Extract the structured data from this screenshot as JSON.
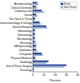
{
  "chart_data": {
    "type": "bar",
    "orientation": "horizontal",
    "categories": [
      "Anesthesiology",
      "Clinical Chemistry",
      "Cardiovascular",
      "Dental",
      "Ear, Nose & Throat",
      "Gastroenterology & Urology",
      "General Hospital",
      "Hematology",
      "Immunology",
      "Microbiology",
      "Neurology",
      "OB/Gynecology",
      "Ophthalmic",
      "Orthopedic",
      "Physical Medicine",
      "Radiology",
      "Gen & Plastic Surgery",
      "Toxicology"
    ],
    "series": [
      {
        "name": "Rural",
        "color": "#1a3a8a",
        "values": [
          4,
          3,
          8,
          3,
          2,
          6,
          12,
          2,
          2,
          2,
          2,
          3,
          3,
          8,
          2,
          14,
          30,
          1
        ]
      },
      {
        "name": "Non Rural",
        "color": "#8fa8d0",
        "values": [
          5,
          4,
          10,
          4,
          2,
          7,
          13,
          2,
          2,
          2,
          3,
          3,
          4,
          9,
          3,
          12,
          28,
          1
        ]
      }
    ],
    "xlabel": "Percent",
    "xlim": [
      0,
      40
    ],
    "xticks": [
      0,
      10,
      20,
      30,
      40
    ],
    "legend": "upper right",
    "grid": false
  }
}
